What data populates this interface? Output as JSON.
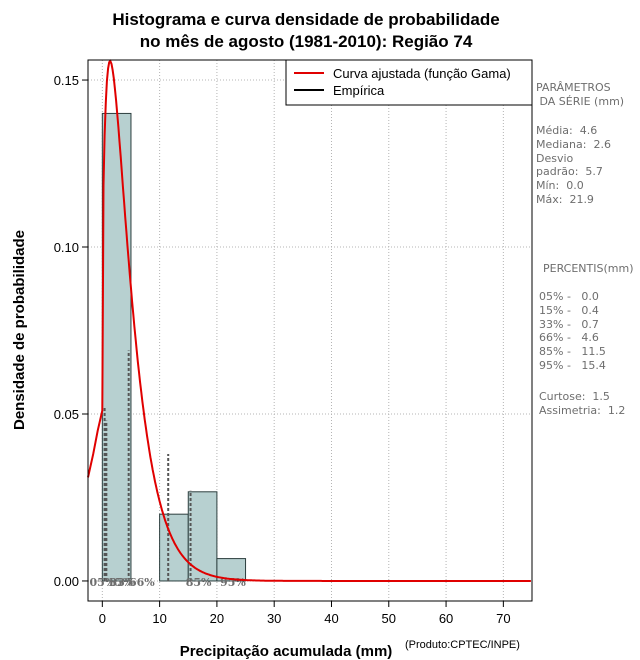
{
  "chart_data": {
    "type": "histogram",
    "title_line1": "Histograma e curva densidade de probabilidade",
    "title_line2": "no mês de agosto (1981-2010): Região 74",
    "xlabel": "Precipitação acumulada (mm)",
    "ylabel": "Densidade de probabilidade",
    "source_note": "(Produto:CPTEC/INPE)",
    "xlim": [
      -2.5,
      75
    ],
    "ylim": [
      -0.006,
      0.156
    ],
    "x_ticks": [
      0,
      10,
      20,
      30,
      40,
      50,
      60,
      70
    ],
    "y_ticks": [
      0.0,
      0.05,
      0.1,
      0.15
    ],
    "y_tick_labels": [
      "0.00",
      "0.05",
      "0.10",
      "0.15"
    ],
    "grid": true,
    "bins": [
      {
        "x0": 0,
        "x1": 5,
        "density": 0.14
      },
      {
        "x0": 5,
        "x1": 10,
        "density": 0.0
      },
      {
        "x0": 10,
        "x1": 15,
        "density": 0.02
      },
      {
        "x0": 15,
        "x1": 20,
        "density": 0.0267
      },
      {
        "x0": 20,
        "x1": 25,
        "density": 0.0067
      }
    ],
    "fit": {
      "name": "Curva ajustada (função Gama)",
      "color": "#e00000",
      "shape": 1.55,
      "scale": 3.0
    },
    "empirical": {
      "name": "Empírica",
      "color": "#000000"
    },
    "legend_position": "top-right",
    "percentile_lines": [
      {
        "label": "05%",
        "value": 0.0,
        "line_top": 0.0
      },
      {
        "label": "15%",
        "value": 0.4,
        "line_top": 0.052
      },
      {
        "label": "33%",
        "value": 0.7,
        "line_top": 0.048
      },
      {
        "label": "66%",
        "value": 4.6,
        "line_top": 0.069
      },
      {
        "label": "85%",
        "value": 11.5,
        "line_top": 0.038
      },
      {
        "label": "95%",
        "value": 15.4,
        "line_top": 0.027
      }
    ]
  },
  "panel": {
    "params_title": "PARÂMETROS\n DA SÉRIE (mm)",
    "stats": "Média:  4.6\nMediana:  2.6\nDesvio\npadrão:  5.7\nMín:  0.0\nMáx:  21.9",
    "percentis_title": "PERCENTIS(mm)",
    "percentis": "05% -   0.0\n15% -   0.4\n33% -   0.7\n66% -   4.6\n85% -   11.5\n95% -   15.4",
    "moments": "Curtose:  1.5\nAssimetria:  1.2"
  },
  "colors": {
    "bar_fill": "#b7d0d0",
    "bar_stroke": "#2c3e3e",
    "grid": "#b4b4b4",
    "percentile": "#555555"
  }
}
